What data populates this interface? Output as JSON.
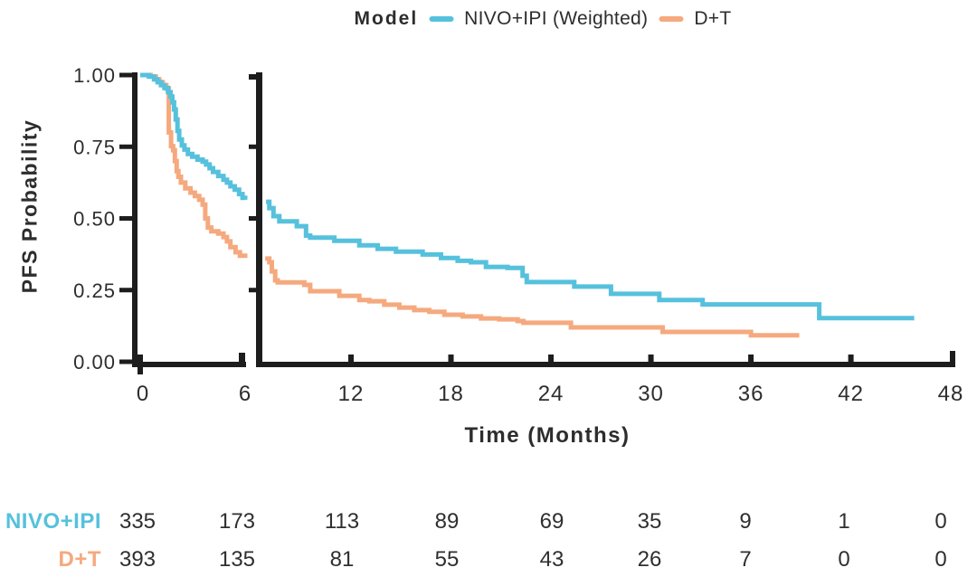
{
  "chart_data": {
    "type": "line",
    "subtype": "kaplan-meier-step-curves-with-x-axis-break",
    "title": "",
    "xlabel": "Time (Months)",
    "ylabel": "PFS Probability",
    "legend_title": "Model",
    "legend_position": "top",
    "x_ticks": [
      0,
      6,
      12,
      18,
      24,
      30,
      36,
      42,
      48
    ],
    "y_tick_labels": [
      "1.00",
      "0.75",
      "0.50",
      "0.25",
      "0.00"
    ],
    "y_tick_values": [
      1.0,
      0.75,
      0.5,
      0.25,
      0.0
    ],
    "ylim": [
      0.0,
      1.0
    ],
    "xlim": [
      0,
      48
    ],
    "axis_break": {
      "left_panel_months": [
        0,
        6
      ],
      "right_panel_months": [
        6.9,
        48
      ]
    },
    "grid": false,
    "axis_color": "#1d1d1d",
    "text_color": "#2d2d2d",
    "series": [
      {
        "name": "NIVO+IPI (Weighted)",
        "color": "#56C1DC",
        "points_left": [
          [
            0,
            1.0
          ],
          [
            0.5,
            0.995
          ],
          [
            0.8,
            0.985
          ],
          [
            1.0,
            0.975
          ],
          [
            1.2,
            0.965
          ],
          [
            1.4,
            0.955
          ],
          [
            1.6,
            0.94
          ],
          [
            1.75,
            0.925
          ],
          [
            1.85,
            0.905
          ],
          [
            1.95,
            0.88
          ],
          [
            2.05,
            0.845
          ],
          [
            2.15,
            0.805
          ],
          [
            2.25,
            0.775
          ],
          [
            2.4,
            0.755
          ],
          [
            2.55,
            0.74
          ],
          [
            2.75,
            0.725
          ],
          [
            3.0,
            0.715
          ],
          [
            3.3,
            0.705
          ],
          [
            3.6,
            0.698
          ],
          [
            3.8,
            0.688
          ],
          [
            4.0,
            0.675
          ],
          [
            4.2,
            0.662
          ],
          [
            4.5,
            0.648
          ],
          [
            4.8,
            0.635
          ],
          [
            5.0,
            0.625
          ],
          [
            5.2,
            0.612
          ],
          [
            5.45,
            0.6
          ],
          [
            5.7,
            0.585
          ],
          [
            5.9,
            0.572
          ],
          [
            6.05,
            0.565
          ]
        ],
        "points_right": [
          [
            6.9,
            0.558
          ],
          [
            7.1,
            0.536
          ],
          [
            7.35,
            0.508
          ],
          [
            7.7,
            0.49
          ],
          [
            8.75,
            0.473
          ],
          [
            9.3,
            0.44
          ],
          [
            9.55,
            0.433
          ],
          [
            11.0,
            0.422
          ],
          [
            12.5,
            0.406
          ],
          [
            13.6,
            0.394
          ],
          [
            14.7,
            0.384
          ],
          [
            16.3,
            0.374
          ],
          [
            17.4,
            0.362
          ],
          [
            18.4,
            0.352
          ],
          [
            19.2,
            0.347
          ],
          [
            20.1,
            0.331
          ],
          [
            21.4,
            0.327
          ],
          [
            22.3,
            0.3
          ],
          [
            22.55,
            0.278
          ],
          [
            25.4,
            0.262
          ],
          [
            27.6,
            0.237
          ],
          [
            30.5,
            0.215
          ],
          [
            33.1,
            0.2
          ],
          [
            40.1,
            0.152
          ],
          [
            45.8,
            0.152
          ]
        ]
      },
      {
        "name": "D+T",
        "color": "#F5A97E",
        "points_left": [
          [
            0,
            1.0
          ],
          [
            0.6,
            0.995
          ],
          [
            0.9,
            0.985
          ],
          [
            1.1,
            0.975
          ],
          [
            1.3,
            0.965
          ],
          [
            1.5,
            0.953
          ],
          [
            1.65,
            0.8
          ],
          [
            1.78,
            0.752
          ],
          [
            1.9,
            0.738
          ],
          [
            2.0,
            0.7
          ],
          [
            2.1,
            0.665
          ],
          [
            2.2,
            0.645
          ],
          [
            2.35,
            0.625
          ],
          [
            2.6,
            0.605
          ],
          [
            2.9,
            0.59
          ],
          [
            3.15,
            0.578
          ],
          [
            3.4,
            0.565
          ],
          [
            3.6,
            0.548
          ],
          [
            3.75,
            0.5
          ],
          [
            3.9,
            0.468
          ],
          [
            4.1,
            0.455
          ],
          [
            4.5,
            0.447
          ],
          [
            4.8,
            0.435
          ],
          [
            5.0,
            0.42
          ],
          [
            5.2,
            0.4
          ],
          [
            5.5,
            0.382
          ],
          [
            5.75,
            0.37
          ],
          [
            6.05,
            0.362
          ]
        ],
        "points_right": [
          [
            6.85,
            0.36
          ],
          [
            7.1,
            0.347
          ],
          [
            7.25,
            0.315
          ],
          [
            7.45,
            0.284
          ],
          [
            7.6,
            0.277
          ],
          [
            9.2,
            0.268
          ],
          [
            9.55,
            0.246
          ],
          [
            11.3,
            0.23
          ],
          [
            12.5,
            0.215
          ],
          [
            13.1,
            0.211
          ],
          [
            14.0,
            0.199
          ],
          [
            14.9,
            0.189
          ],
          [
            15.8,
            0.18
          ],
          [
            16.7,
            0.174
          ],
          [
            17.6,
            0.164
          ],
          [
            18.7,
            0.158
          ],
          [
            19.8,
            0.151
          ],
          [
            20.9,
            0.148
          ],
          [
            22.0,
            0.142
          ],
          [
            22.35,
            0.136
          ],
          [
            25.2,
            0.12
          ],
          [
            30.7,
            0.104
          ],
          [
            36.0,
            0.092
          ],
          [
            38.9,
            0.092
          ]
        ]
      }
    ],
    "risk_table": {
      "description": "Number at risk by time (months): 0,6,12,18,24,30,36,42,48",
      "rows": [
        {
          "label": "NIVO+IPI",
          "color": "#56C1DC",
          "values": [
            "335",
            "173",
            "113",
            "89",
            "69",
            "35",
            "9",
            "1",
            "0"
          ]
        },
        {
          "label": "D+T",
          "color": "#F5A97E",
          "values": [
            "393",
            "135",
            "81",
            "55",
            "43",
            "26",
            "7",
            "0",
            "0"
          ]
        }
      ]
    }
  }
}
